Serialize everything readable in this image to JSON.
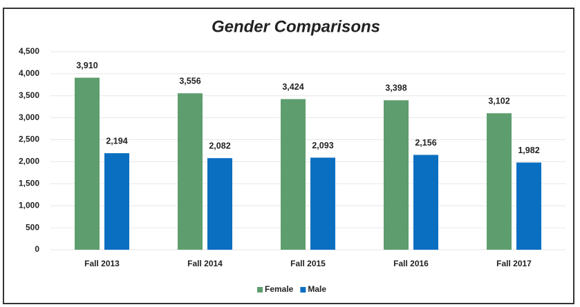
{
  "chart_data": {
    "type": "bar",
    "title": "Gender Comparisons",
    "categories": [
      "Fall 2013",
      "Fall 2014",
      "Fall 2015",
      "Fall 2016",
      "Fall 2017"
    ],
    "series": [
      {
        "name": "Female",
        "color": "#5e9e6e",
        "values": [
          3910,
          3556,
          3424,
          3398,
          3102
        ],
        "value_labels": [
          "3,910",
          "3,556",
          "3,424",
          "3,398",
          "3,102"
        ]
      },
      {
        "name": "Male",
        "color": "#0b6fc1",
        "values": [
          2194,
          2082,
          2093,
          2156,
          1982
        ],
        "value_labels": [
          "2,194",
          "2,082",
          "2,093",
          "2,156",
          "1,982"
        ]
      }
    ],
    "ylim": [
      0,
      4500
    ],
    "yticks": [
      0,
      500,
      {
        "value": 1000,
        "label": "1,000"
      },
      {
        "value": 1500,
        "label": "1,500"
      },
      {
        "value": 2000,
        "label": "2,000"
      },
      {
        "value": 2500,
        "label": "2,500"
      },
      {
        "value": 3000,
        "label": "3,000"
      },
      {
        "value": 3500,
        "label": "3,500"
      },
      {
        "value": 4000,
        "label": "4,000"
      },
      {
        "value": 4500,
        "label": "4,500"
      }
    ],
    "grid": true,
    "legend": "bottom"
  }
}
